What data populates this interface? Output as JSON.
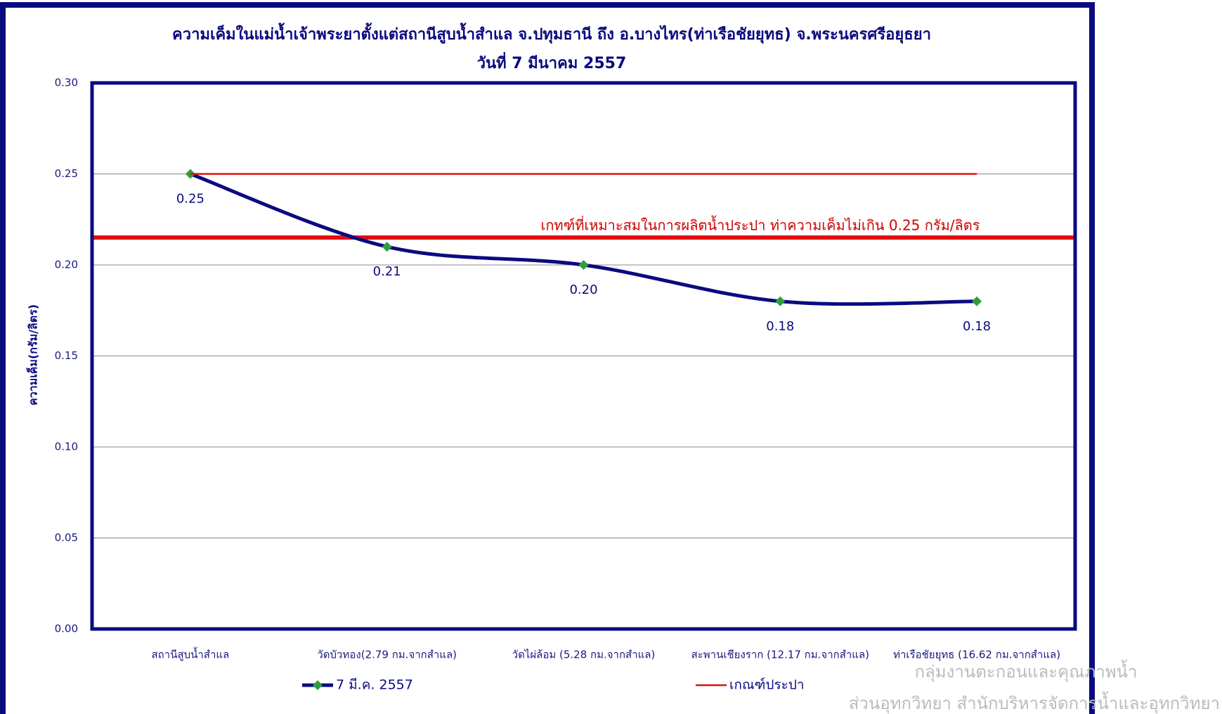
{
  "chart_data": {
    "type": "line",
    "title": "ความเค็มในแม่น้ำเจ้าพระยาตั้งแต่สถานีสูบน้ำสำแล จ.ปทุมธานี ถึง อ.บางไทร(ท่าเรือชัยยุทธ) จ.พระนครศรีอยุธยา",
    "subtitle": "วันที่ 7 มีนาคม 2557",
    "y_label": "ความเค็ม(กรัม/ลิตร)",
    "annotation": "เกทฑ์ที่เหมาะสมในการผลิตน้ำประปา ท่าความเค็มไม่เกิน 0.25 กรัม/ลิตร",
    "watermark": [
      "กลุ่มงานตะกอนและคุณภาพน้ำ",
      "ส่วนอุทกวิทยา สำนักบริหารจัดการน้ำและอุทกวิทยา"
    ],
    "categories": [
      "สถานีสูบน้ำสำแล",
      "วัดบัวทอง(2.79 กม.จากสำแล)",
      "วัดไผ่ล้อม (5.28 กม.จากสำแล)",
      "สะพานเชียงราก (12.17 กม.จากสำแล)",
      "ท่าเรือชัยยุทธ (16.62 กม.จากสำแล)"
    ],
    "series": [
      {
        "name": "7 มี.ค. 2557",
        "color": "#0a0a80",
        "marker_color": "#2e9e3e",
        "values": [
          0.25,
          0.21,
          0.2,
          0.18,
          0.18
        ],
        "value_labels": [
          "0.25",
          "0.21",
          "0.20",
          "0.18",
          "0.18"
        ]
      },
      {
        "name": "เกณฑ์ประปา",
        "color": "#e01010",
        "values": [
          0.25,
          0.25,
          0.25,
          0.25,
          0.25
        ]
      }
    ],
    "ylim": [
      0,
      0.3
    ],
    "yticks": [
      {
        "value": 0,
        "label": "0.00"
      },
      {
        "value": 0.05,
        "label": "0.05"
      },
      {
        "value": 0.1,
        "label": "0.10"
      },
      {
        "value": 0.15,
        "label": "0.15"
      },
      {
        "value": 0.2,
        "label": "0.20"
      },
      {
        "value": 0.25,
        "label": "0.25"
      },
      {
        "value": 0.3,
        "label": "0.30"
      }
    ],
    "grid": true
  }
}
